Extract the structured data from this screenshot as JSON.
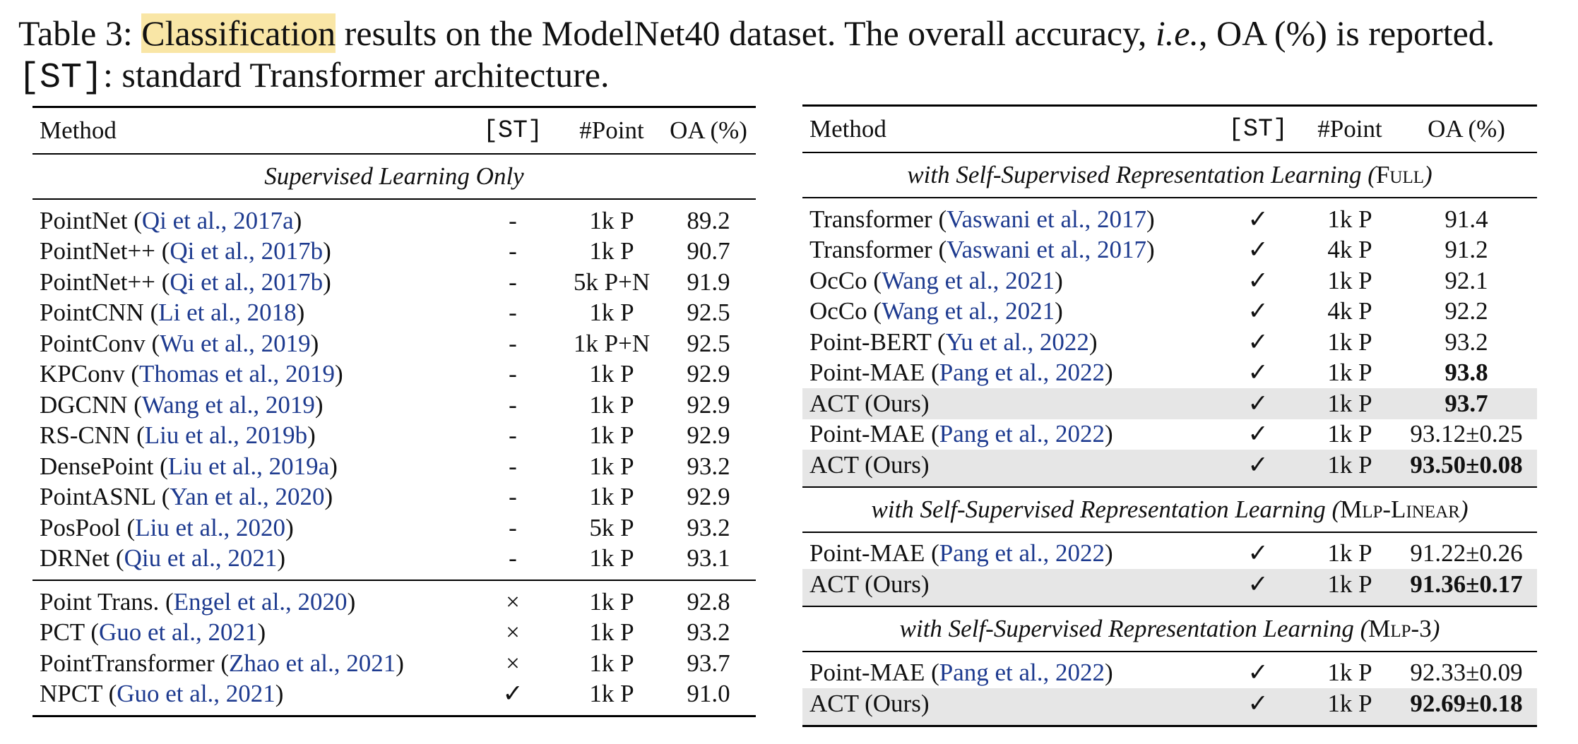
{
  "caption": {
    "prefix": "Table 3: ",
    "highlight": "Classification",
    "rest1": " results on the ModelNet40 dataset. The overall accuracy, ",
    "ie": "i.e.",
    "rest2": ", OA (%) is reported. ",
    "st": "[ST]",
    "rest3": ": standard Transformer architecture."
  },
  "headers": {
    "method": "Method",
    "st": "[ST]",
    "point": "#Point",
    "oa": "OA (%)"
  },
  "left": {
    "section": "Supervised Learning Only",
    "group1": [
      {
        "name": "PointNet",
        "cite": "Qi et al., 2017a",
        "st": "-",
        "point": "1k P",
        "oa": "89.2"
      },
      {
        "name": "PointNet++",
        "cite": "Qi et al., 2017b",
        "st": "-",
        "point": "1k P",
        "oa": "90.7"
      },
      {
        "name": "PointNet++",
        "cite": "Qi et al., 2017b",
        "st": "-",
        "point": "5k P+N",
        "oa": "91.9"
      },
      {
        "name": "PointCNN",
        "cite": "Li et al., 2018",
        "st": "-",
        "point": "1k P",
        "oa": "92.5"
      },
      {
        "name": "PointConv",
        "cite": "Wu et al., 2019",
        "st": "-",
        "point": "1k P+N",
        "oa": "92.5"
      },
      {
        "name": "KPConv",
        "cite": "Thomas et al., 2019",
        "st": "-",
        "point": "1k P",
        "oa": "92.9"
      },
      {
        "name": "DGCNN",
        "cite": "Wang et al., 2019",
        "st": "-",
        "point": "1k P",
        "oa": "92.9"
      },
      {
        "name": "RS-CNN",
        "cite": "Liu et al., 2019b",
        "st": "-",
        "point": "1k P",
        "oa": "92.9"
      },
      {
        "name": "DensePoint",
        "cite": "Liu et al., 2019a",
        "st": "-",
        "point": "1k P",
        "oa": "93.2"
      },
      {
        "name": "PointASNL",
        "cite": "Yan et al., 2020",
        "st": "-",
        "point": "1k P",
        "oa": "92.9"
      },
      {
        "name": "PosPool",
        "cite": "Liu et al., 2020",
        "st": "-",
        "point": "5k P",
        "oa": "93.2"
      },
      {
        "name": "DRNet",
        "cite": "Qiu et al., 2021",
        "st": "-",
        "point": "1k P",
        "oa": "93.1"
      }
    ],
    "group2": [
      {
        "name": "Point Trans.",
        "cite": "Engel et al., 2020",
        "st": "×",
        "point": "1k P",
        "oa": "92.8"
      },
      {
        "name": "PCT",
        "cite": "Guo et al., 2021",
        "st": "×",
        "point": "1k P",
        "oa": "93.2"
      },
      {
        "name": "PointTransformer",
        "cite": "Zhao et al., 2021",
        "st": "×",
        "point": "1k P",
        "oa": "93.7"
      },
      {
        "name": "NPCT",
        "cite": "Guo et al., 2021",
        "st": "✓",
        "point": "1k P",
        "oa": "91.0"
      }
    ]
  },
  "right": {
    "section1": {
      "prefix": "with Self-Supervised Representation Learning",
      "tag": "Full"
    },
    "group1": [
      {
        "name": "Transformer",
        "cite": "Vaswani et al., 2017",
        "st": "✓",
        "point": "1k P",
        "oa": "91.4"
      },
      {
        "name": "Transformer",
        "cite": "Vaswani et al., 2017",
        "st": "✓",
        "point": "4k P",
        "oa": "91.2"
      },
      {
        "name": "OcCo",
        "cite": "Wang et al., 2021",
        "st": "✓",
        "point": "1k P",
        "oa": "92.1"
      },
      {
        "name": "OcCo",
        "cite": "Wang et al., 2021",
        "st": "✓",
        "point": "4k P",
        "oa": "92.2"
      },
      {
        "name": "Point-BERT",
        "cite": "Yu et al., 2022",
        "st": "✓",
        "point": "1k P",
        "oa": "93.2"
      },
      {
        "name": "Point-MAE",
        "cite": "Pang et al., 2022",
        "st": "✓",
        "point": "1k P",
        "oa": "93.8"
      },
      {
        "name": "ACT (Ours)",
        "cite": "",
        "st": "✓",
        "point": "1k P",
        "oa": "93.7"
      },
      {
        "name": "Point-MAE",
        "cite": "Pang et al., 2022",
        "st": "✓",
        "point": "1k P",
        "oa": "93.12±0.25"
      },
      {
        "name": "ACT (Ours)",
        "cite": "",
        "st": "✓",
        "point": "1k P",
        "oa": "93.50±0.08"
      }
    ],
    "section2": {
      "prefix": "with Self-Supervised Representation Learning",
      "tag": "Mlp-Linear"
    },
    "group2": [
      {
        "name": "Point-MAE",
        "cite": "Pang et al., 2022",
        "st": "✓",
        "point": "1k P",
        "oa": "91.22±0.26"
      },
      {
        "name": "ACT (Ours)",
        "cite": "",
        "st": "✓",
        "point": "1k P",
        "oa": "91.36±0.17"
      }
    ],
    "section3": {
      "prefix": "with Self-Supervised Representation Learning",
      "tag": "Mlp-3"
    },
    "group3": [
      {
        "name": "Point-MAE",
        "cite": "Pang et al., 2022",
        "st": "✓",
        "point": "1k P",
        "oa": "92.33±0.09"
      },
      {
        "name": "ACT (Ours)",
        "cite": "",
        "st": "✓",
        "point": "1k P",
        "oa": "92.69±0.18"
      }
    ]
  }
}
